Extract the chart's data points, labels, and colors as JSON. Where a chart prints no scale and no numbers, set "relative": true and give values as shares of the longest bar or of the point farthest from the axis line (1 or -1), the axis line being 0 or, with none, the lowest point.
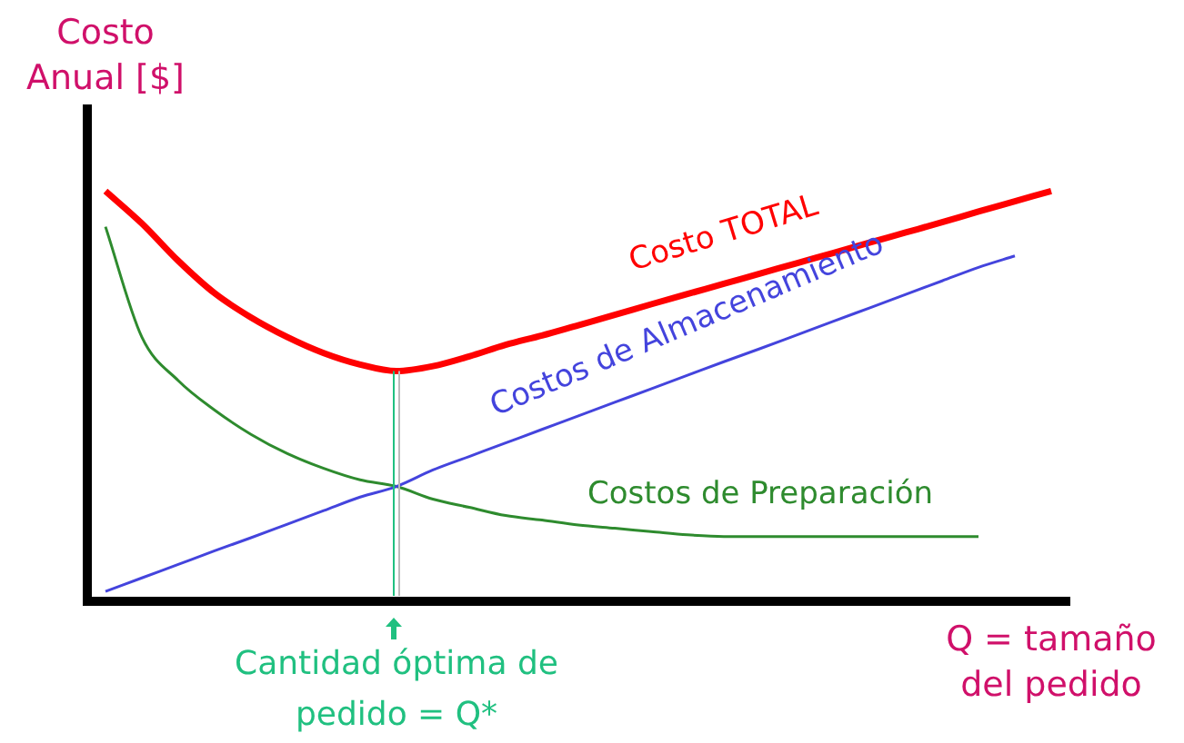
{
  "chart_data": {
    "type": "line",
    "relative": true,
    "ylabel": "Costo Anual [$]",
    "xlabel": "Q = tamaño del pedido",
    "categories": [
      null,
      null,
      null,
      null,
      null,
      null,
      null,
      null,
      null,
      null,
      null,
      null,
      null,
      null,
      null,
      null,
      null,
      null,
      null,
      null,
      null,
      null,
      null,
      null,
      null,
      null,
      null
    ],
    "series": [
      {
        "name": "Costo TOTAL",
        "color": "#ff0000",
        "values": [
          1.0,
          0.921,
          0.83,
          0.751,
          0.692,
          0.644,
          0.605,
          0.577,
          0.561,
          0.573,
          0.597,
          0.625,
          0.648,
          0.673,
          0.698,
          0.724,
          0.749,
          0.774,
          0.799,
          0.824,
          0.849,
          0.874,
          0.899,
          0.924,
          0.95,
          0.975,
          1.0
        ]
      },
      {
        "name": "Costos de Almacenamiento",
        "color": "#4444dd",
        "values": [
          0.024,
          0.057,
          0.09,
          0.123,
          0.155,
          0.188,
          0.221,
          0.254,
          0.28,
          0.32,
          0.353,
          0.386,
          0.419,
          0.452,
          0.485,
          0.518,
          0.551,
          0.584,
          0.616,
          0.649,
          0.682,
          0.715,
          0.748,
          0.781,
          0.814,
          0.842,
          null
        ]
      },
      {
        "name": "Costos de Preparación",
        "color": "#2e8b2e",
        "values": [
          0.913,
          0.644,
          0.538,
          0.466,
          0.407,
          0.36,
          0.324,
          0.296,
          0.28,
          0.249,
          0.229,
          0.209,
          0.198,
          0.186,
          0.178,
          0.17,
          0.162,
          0.158,
          0.158,
          0.158,
          0.158,
          0.158,
          0.158,
          0.158,
          0.158,
          null,
          null
        ]
      }
    ],
    "annotations": [
      "Cantidad óptima de pedido = Q*"
    ],
    "legend": false,
    "grid": false,
    "marker": "none",
    "line_style": "solid"
  }
}
